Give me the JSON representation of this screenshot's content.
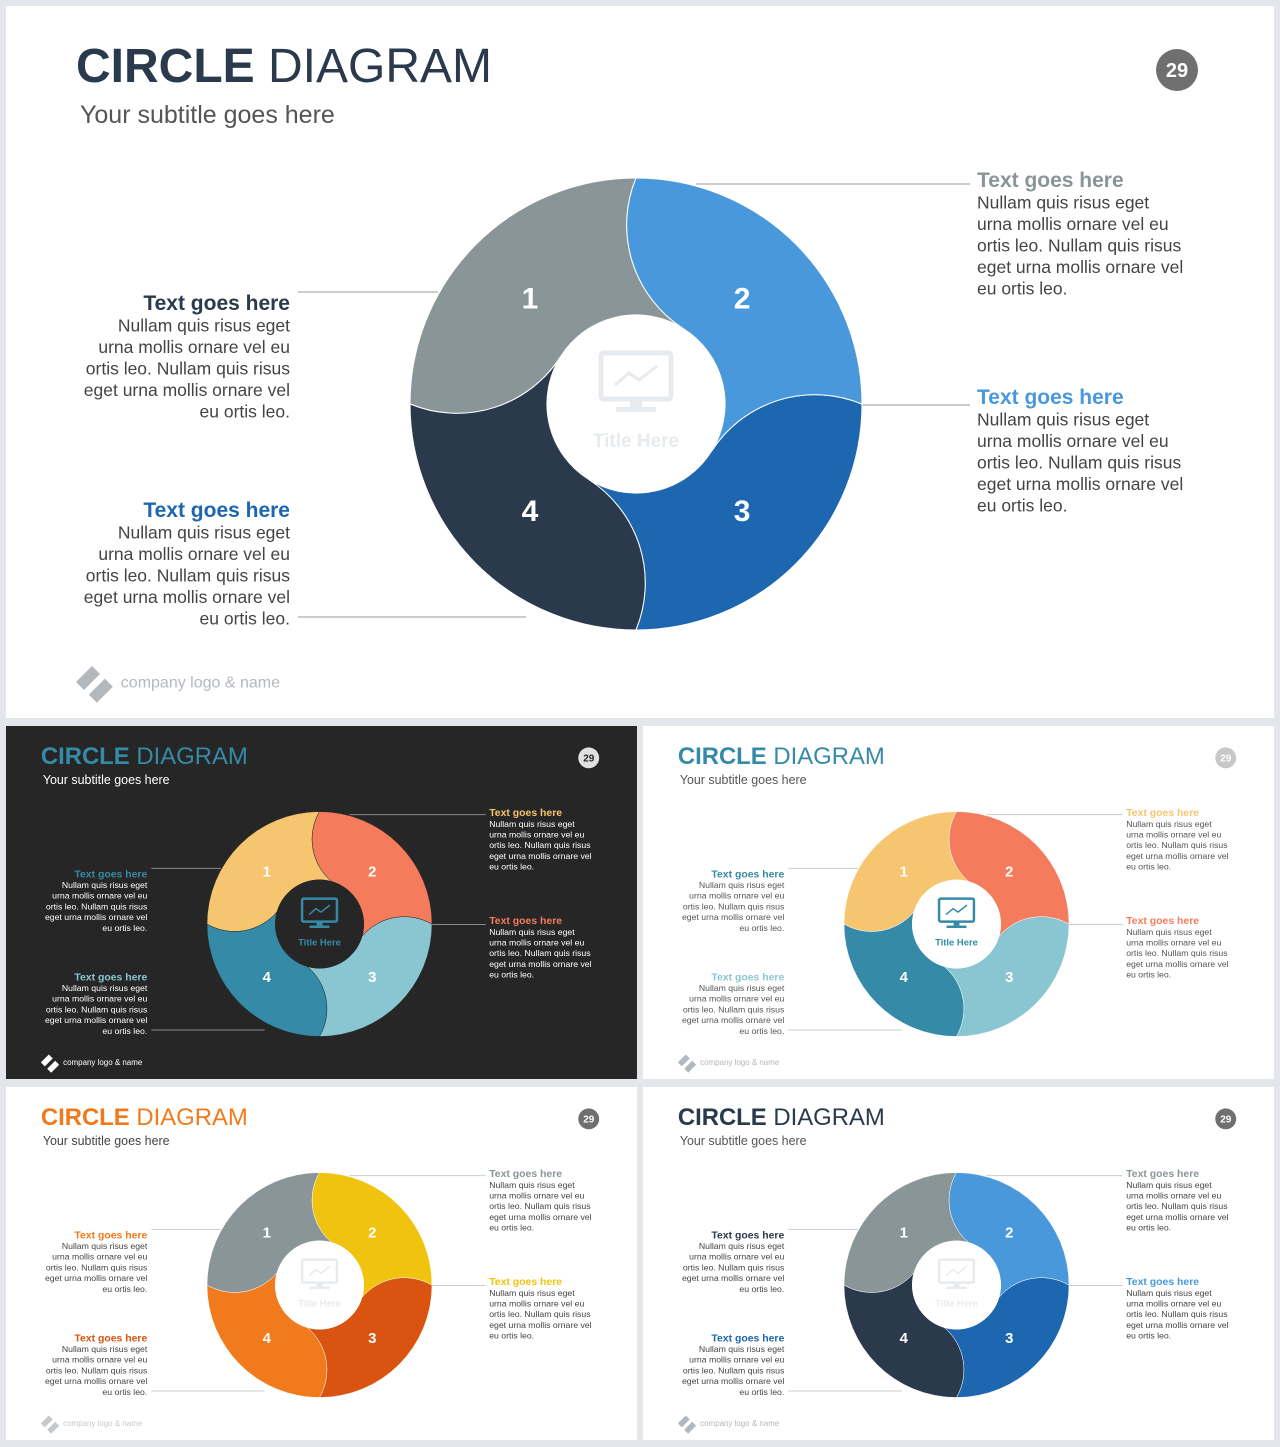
{
  "slides": [
    {
      "id": "main",
      "theme": "blue-gray",
      "title_bold": "CIRCLE",
      "title_rest": " DIAGRAM",
      "subtitle": "Your subtitle goes here",
      "page_number": "29",
      "center_label": "Title Here",
      "logo_text": "company logo & name",
      "segments": [
        {
          "number": "1",
          "heading": "Text goes here",
          "body": [
            "Nullam quis risus eget",
            "urna mollis ornare vel eu",
            "ortis leo. Nullam quis risus",
            "eget urna mollis ornare vel",
            "eu ortis leo."
          ]
        },
        {
          "number": "2",
          "heading": "Text goes here",
          "body": [
            "Nullam quis risus eget",
            "urna mollis ornare vel eu",
            "ortis leo. Nullam quis risus",
            "eget urna mollis ornare vel",
            "eu ortis leo."
          ]
        },
        {
          "number": "3",
          "heading": "Text goes here",
          "body": [
            "Nullam quis risus eget",
            "urna mollis ornare vel eu",
            "ortis leo. Nullam quis risus",
            "eget urna mollis ornare vel",
            "eu ortis leo."
          ]
        },
        {
          "number": "4",
          "heading": "Text goes here",
          "body": [
            "Nullam quis risus eget",
            "urna mollis ornare vel eu",
            "ortis leo. Nullam quis risus",
            "eget urna mollis ornare vel",
            "eu ortis leo."
          ]
        }
      ]
    },
    {
      "id": "dark",
      "theme": "pastel-dark",
      "title_bold": "CIRCLE",
      "title_rest": " DIAGRAM",
      "subtitle": "Your subtitle goes here",
      "page_number": "29",
      "center_label": "Title Here",
      "logo_text": "company logo & name",
      "segments": [
        {
          "number": "1",
          "heading": "Text goes here",
          "body": [
            "Nullam quis risus eget",
            "urna mollis ornare vel eu",
            "ortis leo. Nullam quis risus",
            "eget urna mollis ornare vel",
            "eu ortis leo."
          ]
        },
        {
          "number": "2",
          "heading": "Text goes here",
          "body": [
            "Nullam quis risus eget",
            "urna mollis ornare vel eu",
            "ortis leo. Nullam quis risus",
            "eget urna mollis ornare vel",
            "eu ortis leo."
          ]
        },
        {
          "number": "3",
          "heading": "Text goes here",
          "body": [
            "Nullam quis risus eget",
            "urna mollis ornare vel eu",
            "ortis leo. Nullam quis risus",
            "eget urna mollis ornare vel",
            "eu ortis leo."
          ]
        },
        {
          "number": "4",
          "heading": "Text goes here",
          "body": [
            "Nullam quis risus eget",
            "urna mollis ornare vel eu",
            "ortis leo. Nullam quis risus",
            "eget urna mollis ornare vel",
            "eu ortis leo."
          ]
        }
      ]
    },
    {
      "id": "teal",
      "theme": "pastel-light",
      "title_bold": "CIRCLE",
      "title_rest": " DIAGRAM",
      "subtitle": "Your subtitle goes here",
      "page_number": "29",
      "center_label": "Title Here",
      "logo_text": "company logo & name",
      "segments": [
        {
          "number": "1",
          "heading": "Text goes here",
          "body": [
            "Nullam quis risus eget",
            "urna mollis ornare vel eu",
            "ortis leo. Nullam quis risus",
            "eget urna mollis ornare vel",
            "eu ortis leo."
          ]
        },
        {
          "number": "2",
          "heading": "Text goes here",
          "body": [
            "Nullam quis risus eget",
            "urna mollis ornare vel eu",
            "ortis leo. Nullam quis risus",
            "eget urna mollis ornare vel",
            "eu ortis leo."
          ]
        },
        {
          "number": "3",
          "heading": "Text goes here",
          "body": [
            "Nullam quis risus eget",
            "urna mollis ornare vel eu",
            "ortis leo. Nullam quis risus",
            "eget urna mollis ornare vel",
            "eu ortis leo."
          ]
        },
        {
          "number": "4",
          "heading": "Text goes here",
          "body": [
            "Nullam quis risus eget",
            "urna mollis ornare vel eu",
            "ortis leo. Nullam quis risus",
            "eget urna mollis ornare vel",
            "eu ortis leo."
          ]
        }
      ]
    },
    {
      "id": "orange",
      "theme": "orange",
      "title_bold": "CIRCLE",
      "title_rest": " DIAGRAM",
      "subtitle": "Your subtitle goes here",
      "page_number": "29",
      "center_label": "Title Here",
      "logo_text": "company logo & name",
      "segments": [
        {
          "number": "1",
          "heading": "Text goes here",
          "body": [
            "Nullam quis risus eget",
            "urna mollis ornare vel eu",
            "ortis leo. Nullam quis risus",
            "eget urna mollis ornare vel",
            "eu ortis leo."
          ]
        },
        {
          "number": "2",
          "heading": "Text goes here",
          "body": [
            "Nullam quis risus eget",
            "urna mollis ornare vel eu",
            "ortis leo. Nullam quis risus",
            "eget urna mollis ornare vel",
            "eu ortis leo."
          ]
        },
        {
          "number": "3",
          "heading": "Text goes here",
          "body": [
            "Nullam quis risus eget",
            "urna mollis ornare vel eu",
            "ortis leo. Nullam quis risus",
            "eget urna mollis ornare vel",
            "eu ortis leo."
          ]
        },
        {
          "number": "4",
          "heading": "Text goes here",
          "body": [
            "Nullam quis risus eget",
            "urna mollis ornare vel eu",
            "ortis leo. Nullam quis risus",
            "eget urna mollis ornare vel",
            "eu ortis leo."
          ]
        }
      ]
    },
    {
      "id": "blue",
      "theme": "blue-gray",
      "title_bold": "CIRCLE",
      "title_rest": " DIAGRAM",
      "subtitle": "Your subtitle goes here",
      "page_number": "29",
      "center_label": "Title Here",
      "logo_text": "company logo & name",
      "segments": [
        {
          "number": "1",
          "heading": "Text goes here",
          "body": [
            "Nullam quis risus eget",
            "urna mollis ornare vel eu",
            "ortis leo. Nullam quis risus",
            "eget urna mollis ornare vel",
            "eu ortis leo."
          ]
        },
        {
          "number": "2",
          "heading": "Text goes here",
          "body": [
            "Nullam quis risus eget",
            "urna mollis ornare vel eu",
            "ortis leo. Nullam quis risus",
            "eget urna mollis ornare vel",
            "eu ortis leo."
          ]
        },
        {
          "number": "3",
          "heading": "Text goes here",
          "body": [
            "Nullam quis risus eget",
            "urna mollis ornare vel eu",
            "ortis leo. Nullam quis risus",
            "eget urna mollis ornare vel",
            "eu ortis leo."
          ]
        },
        {
          "number": "4",
          "heading": "Text goes here",
          "body": [
            "Nullam quis risus eget",
            "urna mollis ornare vel eu",
            "ortis leo. Nullam quis risus",
            "eget urna mollis ornare vel",
            "eu ortis leo."
          ]
        }
      ]
    }
  ],
  "themes": {
    "blue-gray": {
      "segment_colors": [
        "#8a9597",
        "#4a98dc",
        "#1c67b0",
        "#2a3a4c"
      ],
      "heading_colors": [
        "#2a3a4c",
        "#8a9597",
        "#4a98dc",
        "#1c67b0"
      ],
      "title_bold_color": "#2a3a4c",
      "title_rest_color": "#2a3a4c",
      "text_color": "#444444",
      "subtitle_color": "#555555",
      "center_color": "#e8ebee",
      "badge_color": "#6f6f6f",
      "line_color": "#c8cdd2",
      "logo_color": "#b3b8bd",
      "hole_color": "#ffffff"
    },
    "pastel-dark": {
      "segment_colors": [
        "#f6c56f",
        "#f47c5c",
        "#8ac6d1",
        "#358ba7"
      ],
      "heading_colors": [
        "#358ba7",
        "#f6c56f",
        "#f47c5c",
        "#8ac6d1"
      ],
      "title_bold_color": "#358ba7",
      "title_rest_color": "#358ba7",
      "text_color": "#ffffff",
      "subtitle_color": "#ffffff",
      "center_color": "#358ba7",
      "badge_color": "#e0e0e0",
      "line_color": "#8a8a8a",
      "logo_color": "#ffffff",
      "hole_color": "#262626"
    },
    "pastel-light": {
      "segment_colors": [
        "#f6c56f",
        "#f47c5c",
        "#8ac6d1",
        "#358ba7"
      ],
      "heading_colors": [
        "#358ba7",
        "#f6c56f",
        "#f47c5c",
        "#8ac6d1"
      ],
      "title_bold_color": "#358ba7",
      "title_rest_color": "#358ba7",
      "text_color": "#555555",
      "subtitle_color": "#555555",
      "center_color": "#358ba7",
      "badge_color": "#c8c8c8",
      "line_color": "#c8cdd2",
      "logo_color": "#b3b8bd",
      "hole_color": "#ffffff"
    },
    "orange": {
      "segment_colors": [
        "#8a9597",
        "#f0c30f",
        "#d95410",
        "#f07a1c"
      ],
      "heading_colors": [
        "#f07a1c",
        "#8a9597",
        "#f0c30f",
        "#d95410"
      ],
      "title_bold_color": "#f07a1c",
      "title_rest_color": "#f07a1c",
      "text_color": "#444444",
      "subtitle_color": "#444444",
      "center_color": "#e8ebee",
      "badge_color": "#6f6f6f",
      "line_color": "#c8cdd2",
      "logo_color": "#c5c9cd",
      "hole_color": "#ffffff"
    }
  }
}
